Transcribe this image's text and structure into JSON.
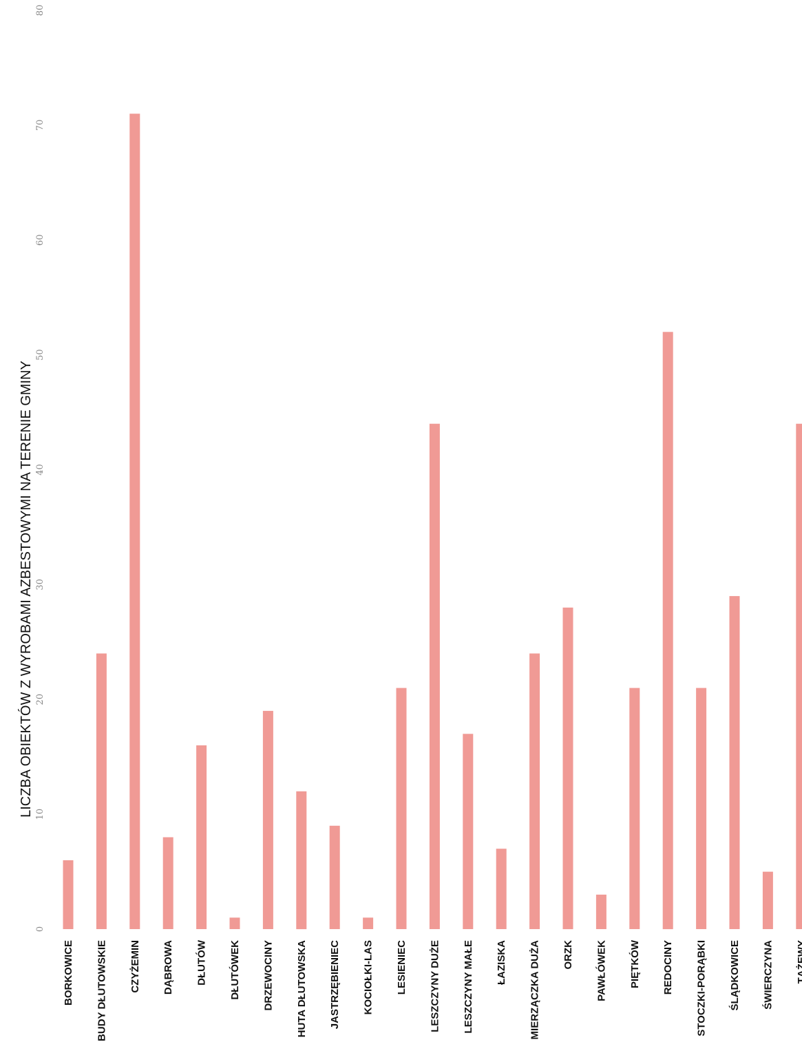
{
  "chart_data": {
    "type": "bar",
    "orientation": "vertical",
    "title": "LICZBA OBIEKTÓW Z WYROBAMI AZBESTOWYMI NA TERENIE GMINY",
    "categories": [
      "BORKOWICE",
      "BUDY DŁUTOWSKIE",
      "CZYŻEMIN",
      "DĄBROWA",
      "DŁUTÓW",
      "DŁUTÓWEK",
      "DRZEWOCINY",
      "HUTA DŁUTOWSKA",
      "JASTRZĘBIENIEC",
      "KOCIOŁKI-LAS",
      "LESIENIEC",
      "LESZCZYNY DUŻE",
      "LESZCZYNY MAŁE",
      "ŁAZISKA",
      "MIERZĄCZKA DUŻA",
      "ORZK",
      "PAWŁÓWEK",
      "PIĘTKÓW",
      "REDOCINY",
      "STOCZKI-PORĄBKI",
      "ŚLĄDKOWICE",
      "ŚWIERCZYNA",
      "TĄŻEWY"
    ],
    "values": [
      6,
      24,
      71,
      8,
      16,
      1,
      19,
      12,
      9,
      1,
      21,
      44,
      17,
      7,
      24,
      28,
      3,
      21,
      52,
      21,
      29,
      5,
      44
    ],
    "ylim": [
      0,
      80
    ],
    "yticks": [
      "0",
      "10",
      "20",
      "30",
      "40",
      "50",
      "60",
      "70",
      "80"
    ],
    "bar_color": "#f09a95",
    "grid": false,
    "legend": "none"
  }
}
